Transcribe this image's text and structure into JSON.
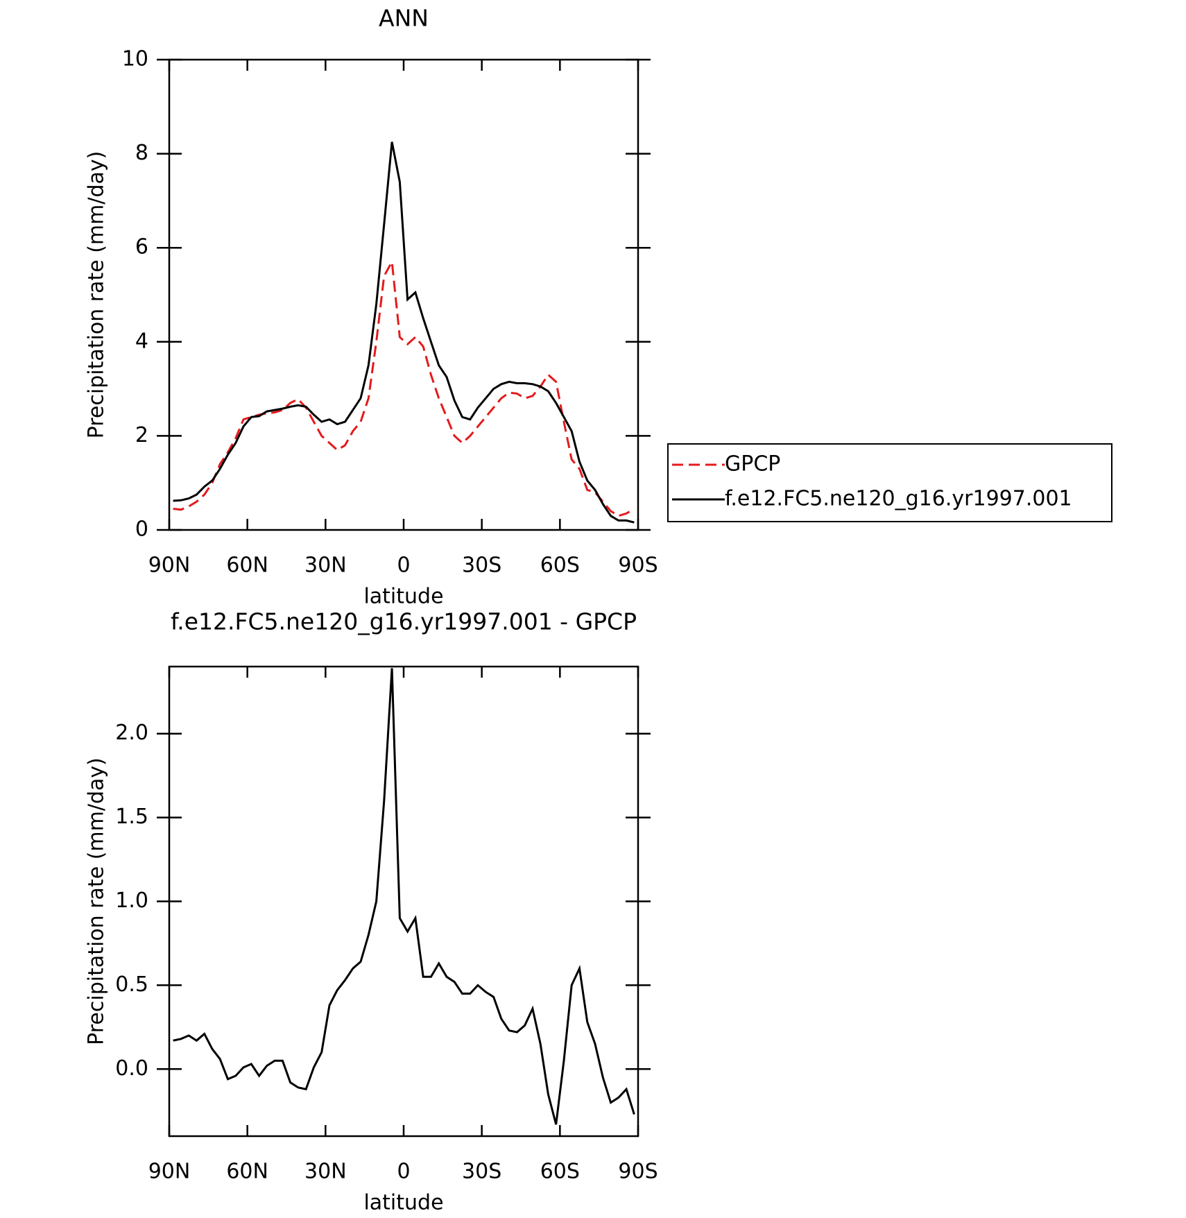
{
  "chart_data": [
    {
      "type": "line",
      "title": "ANN",
      "xlabel": "latitude",
      "ylabel": "Precipitation rate (mm/day)",
      "x": [
        88.5,
        85.5,
        82.5,
        79.5,
        76.5,
        73.5,
        70.5,
        67.5,
        64.5,
        61.5,
        58.5,
        55.5,
        52.5,
        49.5,
        46.5,
        43.5,
        40.5,
        37.5,
        34.5,
        31.5,
        28.5,
        25.5,
        22.5,
        19.5,
        16.5,
        13.5,
        10.5,
        7.5,
        4.5,
        1.5,
        -1.5,
        -4.5,
        -7.5,
        -10.5,
        -13.5,
        -16.5,
        -19.5,
        -22.5,
        -25.5,
        -28.5,
        -31.5,
        -34.5,
        -37.5,
        -40.5,
        -43.5,
        -46.5,
        -49.5,
        -52.5,
        -55.5,
        -58.5,
        -61.5,
        -64.5,
        -67.5,
        -70.5,
        -73.5,
        -76.5,
        -79.5,
        -82.5,
        -85.5,
        -88.5
      ],
      "xlim": [
        90,
        -90
      ],
      "xticks": [
        {
          "value": 90,
          "label": "90N"
        },
        {
          "value": 60,
          "label": "60N"
        },
        {
          "value": 30,
          "label": "30N"
        },
        0,
        {
          "value": -30,
          "label": "30S"
        },
        {
          "value": -60,
          "label": "60S"
        },
        {
          "value": -90,
          "label": "90S"
        }
      ],
      "ylim": [
        0,
        10
      ],
      "yticks": [
        0,
        2,
        4,
        6,
        8,
        10
      ],
      "legend": "outside right",
      "series": [
        {
          "name": "GPCP",
          "color": "#e41a1c",
          "dash": true,
          "values": [
            0.45,
            0.43,
            0.5,
            0.6,
            0.75,
            1.0,
            1.4,
            1.65,
            1.95,
            2.35,
            2.4,
            2.45,
            2.48,
            2.5,
            2.55,
            2.7,
            2.78,
            2.6,
            2.3,
            2.0,
            1.85,
            1.7,
            1.8,
            2.1,
            2.3,
            2.8,
            4.0,
            5.4,
            5.7,
            4.1,
            3.95,
            4.1,
            3.9,
            3.3,
            2.8,
            2.4,
            2.0,
            1.85,
            2.0,
            2.2,
            2.4,
            2.6,
            2.8,
            2.92,
            2.9,
            2.8,
            2.85,
            3.05,
            3.3,
            3.15,
            2.3,
            1.5,
            1.3,
            0.85,
            0.8,
            0.6,
            0.4,
            0.3,
            0.35,
            0.45
          ]
        },
        {
          "name": "f.e12.FC5.ne120_g16.yr1997.001",
          "color": "#000000",
          "dash": false,
          "values": [
            0.62,
            0.63,
            0.67,
            0.75,
            0.92,
            1.05,
            1.3,
            1.6,
            1.85,
            2.2,
            2.4,
            2.42,
            2.52,
            2.55,
            2.58,
            2.62,
            2.65,
            2.62,
            2.45,
            2.3,
            2.35,
            2.25,
            2.3,
            2.55,
            2.8,
            3.5,
            4.8,
            6.5,
            8.25,
            7.4,
            4.9,
            5.05,
            4.5,
            4.0,
            3.5,
            3.25,
            2.75,
            2.4,
            2.35,
            2.6,
            2.8,
            3.0,
            3.1,
            3.15,
            3.12,
            3.12,
            3.1,
            3.05,
            2.95,
            2.7,
            2.4,
            2.1,
            1.45,
            1.05,
            0.85,
            0.55,
            0.3,
            0.2,
            0.2,
            0.16
          ]
        }
      ]
    },
    {
      "type": "line",
      "title": "f.e12.FC5.ne120_g16.yr1997.001 - GPCP",
      "xlabel": "latitude",
      "ylabel": "Precipitation rate (mm/day)",
      "x": [
        88.5,
        85.5,
        82.5,
        79.5,
        76.5,
        73.5,
        70.5,
        67.5,
        64.5,
        61.5,
        58.5,
        55.5,
        52.5,
        49.5,
        46.5,
        43.5,
        40.5,
        37.5,
        34.5,
        31.5,
        28.5,
        25.5,
        22.5,
        19.5,
        16.5,
        13.5,
        10.5,
        7.5,
        4.5,
        1.5,
        -1.5,
        -4.5,
        -7.5,
        -10.5,
        -13.5,
        -16.5,
        -19.5,
        -22.5,
        -25.5,
        -28.5,
        -31.5,
        -34.5,
        -37.5,
        -40.5,
        -43.5,
        -46.5,
        -49.5,
        -52.5,
        -55.5,
        -58.5,
        -61.5,
        -64.5,
        -67.5,
        -70.5,
        -73.5,
        -76.5,
        -79.5,
        -82.5,
        -85.5,
        -88.5
      ],
      "xlim": [
        90,
        -90
      ],
      "xticks": [
        {
          "value": 90,
          "label": "90N"
        },
        {
          "value": 60,
          "label": "60N"
        },
        {
          "value": 30,
          "label": "30N"
        },
        0,
        {
          "value": -30,
          "label": "30S"
        },
        {
          "value": -60,
          "label": "60S"
        },
        {
          "value": -90,
          "label": "90S"
        }
      ],
      "ylim": [
        -0.4,
        2.4
      ],
      "yticks": [
        {
          "value": 0,
          "label": "0.0"
        },
        0.5,
        {
          "value": 1,
          "label": "1.0"
        },
        1.5,
        {
          "value": 2,
          "label": "2.0"
        }
      ],
      "series": [
        {
          "color": "#000000",
          "dash": false,
          "values": [
            0.17,
            0.18,
            0.2,
            0.17,
            0.21,
            0.12,
            0.06,
            -0.06,
            -0.04,
            0.01,
            0.03,
            -0.04,
            0.02,
            0.05,
            0.05,
            -0.08,
            -0.11,
            -0.12,
            0.01,
            0.1,
            0.38,
            0.47,
            0.53,
            0.6,
            0.64,
            0.8,
            1.0,
            1.6,
            2.39,
            0.9,
            0.82,
            0.9,
            0.55,
            0.55,
            0.63,
            0.55,
            0.52,
            0.45,
            0.45,
            0.5,
            0.46,
            0.43,
            0.3,
            0.23,
            0.22,
            0.26,
            0.36,
            0.15,
            -0.15,
            -0.33,
            0.05,
            0.5,
            0.6,
            0.28,
            0.15,
            -0.05,
            -0.2,
            -0.17,
            -0.12,
            -0.27
          ]
        }
      ]
    }
  ]
}
